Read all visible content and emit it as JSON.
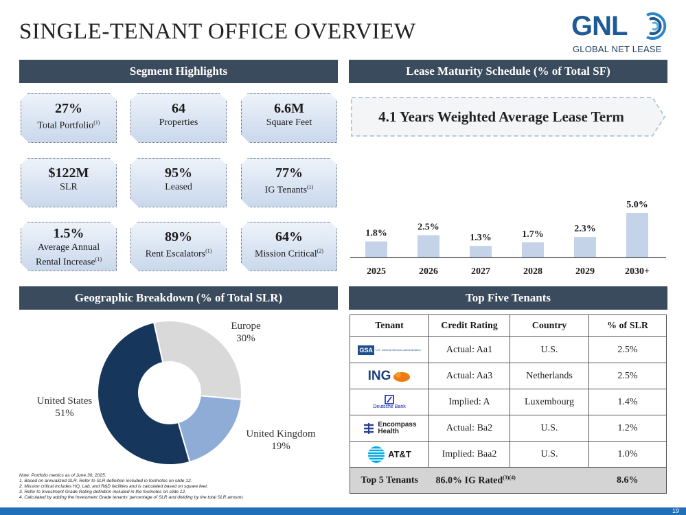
{
  "page": {
    "title": "SINGLE-TENANT OFFICE OVERVIEW",
    "page_number": "19"
  },
  "logo": {
    "text": "GNL",
    "subtitle": "GLOBAL NET LEASE"
  },
  "sections": {
    "segment": "Segment Highlights",
    "lease": "Lease Maturity Schedule (% of Total SF)",
    "geo": "Geographic Breakdown (% of Total SLR)",
    "tenants": "Top Five Tenants"
  },
  "highlights": [
    {
      "value": "27%",
      "label": "Total Portfolio",
      "sup": "(1)"
    },
    {
      "value": "64",
      "label": "Properties",
      "sup": ""
    },
    {
      "value": "6.6M",
      "label": "Square Feet",
      "sup": ""
    },
    {
      "value": "$122M",
      "label": "SLR",
      "sup": ""
    },
    {
      "value": "95%",
      "label": "Leased",
      "sup": ""
    },
    {
      "value": "77%",
      "label": "IG Tenants",
      "sup": "(1)"
    },
    {
      "value": "1.5%",
      "label1": "Average Annual",
      "label2": "Rental Increase",
      "sup": "(1)"
    },
    {
      "value": "89%",
      "label": "Rent Escalators",
      "sup": "(1)"
    },
    {
      "value": "64%",
      "label": "Mission Critical",
      "sup": "(2)"
    }
  ],
  "wale": "4.1 Years Weighted Average Lease Term",
  "chart_data": [
    {
      "type": "bar",
      "title": "Lease Maturity Schedule (% of Total SF)",
      "categories": [
        "2025",
        "2026",
        "2027",
        "2028",
        "2029",
        "2030+"
      ],
      "values": [
        1.8,
        2.5,
        1.3,
        1.7,
        2.3,
        5.0
      ],
      "labels": [
        "1.8%",
        "2.5%",
        "1.3%",
        "1.7%",
        "2.3%",
        "5.0%"
      ],
      "ylim": [
        0,
        5.0
      ],
      "color": "#c5d3e8"
    },
    {
      "type": "pie",
      "title": "Geographic Breakdown (% of Total SLR)",
      "slices": [
        {
          "name": "Europe",
          "value": 30,
          "label": "30%",
          "color": "#d9d9d9"
        },
        {
          "name": "United Kingdom",
          "value": 19,
          "label": "19%",
          "color": "#8eacd6"
        },
        {
          "name": "United States",
          "value": 51,
          "label": "51%",
          "color": "#16365c"
        }
      ]
    }
  ],
  "tenants_table": {
    "headers": [
      "Tenant",
      "Credit Rating",
      "Country",
      "% of SLR"
    ],
    "rows": [
      {
        "tenant": "GSA",
        "tenant_sub": "U.S. General Services Administration",
        "rating": "Actual: Aa1",
        "country": "U.S.",
        "slr": "2.5%"
      },
      {
        "tenant": "ING",
        "rating": "Actual: Aa3",
        "country": "Netherlands",
        "slr": "2.5%"
      },
      {
        "tenant": "Deutsche Bank",
        "rating": "Implied: A",
        "country": "Luxembourg",
        "slr": "1.4%"
      },
      {
        "tenant": "Encompass Health",
        "tenant1": "Encompass",
        "tenant2": "Health",
        "rating": "Actual: Ba2",
        "country": "U.S.",
        "slr": "1.2%"
      },
      {
        "tenant": "AT&T",
        "rating": "Implied: Baa2",
        "country": "U.S.",
        "slr": "1.0%"
      }
    ],
    "total": {
      "label": "Top 5 Tenants",
      "ig": "86.0% IG Rated",
      "ig_sup": "(3)(4)",
      "slr": "8.6%"
    }
  },
  "notes": [
    "Note: Portfolio metrics as of June 30, 2025.",
    "1.    Based on annualized SLR. Refer to SLR definition included in footnotes on slide 12.",
    "2.    Mission critical includes HQ, Lab, and R&D facilities and is calculated based on square feet.",
    "3.    Refer to Investment Grade Rating definition included in the footnotes on slide 12.",
    "4.    Calculated by adding the Investment Grade tenants' percentage of SLR and dividing by the total SLR amount."
  ]
}
